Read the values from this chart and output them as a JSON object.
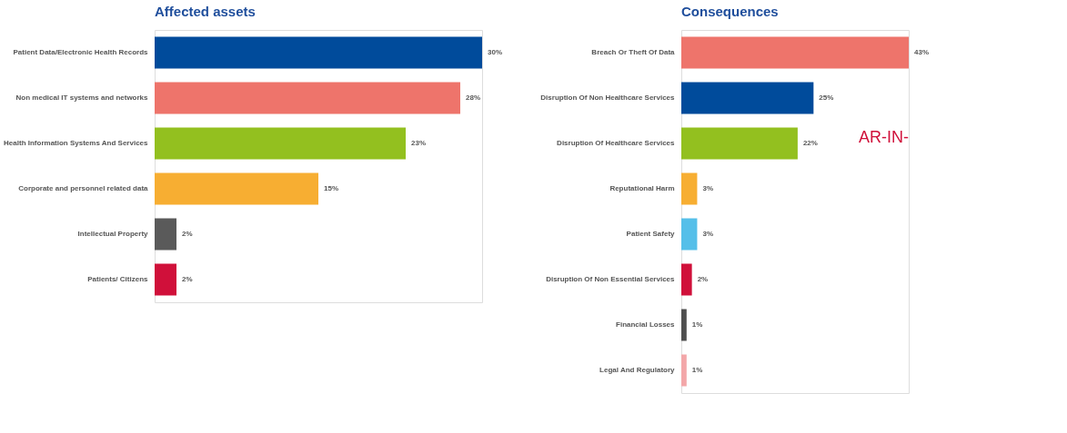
{
  "chart_data": [
    {
      "type": "bar",
      "orientation": "horizontal",
      "title": "Affected assets",
      "categories": [
        "Patient Data/Electronic Health Records",
        "Non medical IT systems and networks",
        "Health Information Systems And Services",
        "Corporate and personnel related data",
        "Intellectual Property",
        "Patients/ Citizens"
      ],
      "values": [
        30,
        28,
        23,
        15,
        2,
        2
      ],
      "value_labels": [
        "30%",
        "28%",
        "23%",
        "15%",
        "2%",
        "2%"
      ],
      "colors": [
        "#004b9b",
        "#ee746b",
        "#93c01f",
        "#f7ae32",
        "#5a5a5a",
        "#d0103a"
      ]
    },
    {
      "type": "bar",
      "orientation": "horizontal",
      "title": "Consequences",
      "categories": [
        "Breach Or Theft Of Data",
        "Disruption Of Non Healthcare Services",
        "Disruption Of Healthcare Services",
        "Reputational Harm",
        "Patient Safety",
        "Disruption Of Non Essential Services",
        "Financial Losses",
        "Legal And Regulatory"
      ],
      "values": [
        43,
        25,
        22,
        3,
        3,
        2,
        1,
        1
      ],
      "value_labels": [
        "43%",
        "25%",
        "22%",
        "3%",
        "3%",
        "2%",
        "1%",
        "1%"
      ],
      "colors": [
        "#ee746b",
        "#004b9b",
        "#93c01f",
        "#f7ae32",
        "#55bfe9",
        "#d0103a",
        "#4f4f4f",
        "#f3a7a9"
      ],
      "annotations": [
        "AR-IN-"
      ]
    }
  ]
}
